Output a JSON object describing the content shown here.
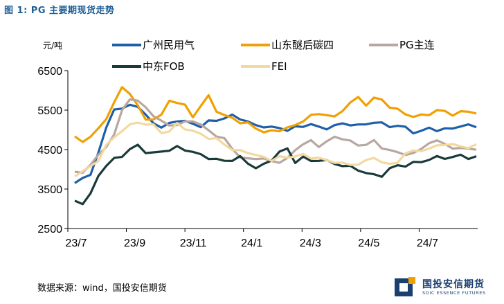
{
  "title": "图 1: PG 主要期现货走势",
  "source": "数据来源：wind，国投安信期货",
  "logo": {
    "cn": "国投安信期货",
    "en": "SDIC ESSENCE FUTURES"
  },
  "chart_data": {
    "type": "line",
    "yunit": "元/吨",
    "ylim": [
      2500,
      6500
    ],
    "yticks": [
      "2500",
      "3500",
      "4500",
      "5500",
      "6500"
    ],
    "xticks": [
      "23/7",
      "23/9",
      "23/11",
      "24/1",
      "24/3",
      "24/5",
      "24/7"
    ],
    "grid": false,
    "legend": "top",
    "x": [
      "23/7",
      "23/7",
      "23/8",
      "23/8",
      "23/8",
      "23/8",
      "23/9",
      "23/9",
      "23/9",
      "23/9",
      "23/10",
      "23/10",
      "23/10",
      "23/10",
      "23/11",
      "23/11",
      "23/11",
      "23/11",
      "23/12",
      "23/12",
      "23/12",
      "23/12",
      "24/1",
      "24/1",
      "24/1",
      "24/1",
      "24/2",
      "24/2",
      "24/2",
      "24/2",
      "24/3",
      "24/3",
      "24/3",
      "24/3",
      "24/4",
      "24/4",
      "24/4",
      "24/4",
      "24/5",
      "24/5",
      "24/5",
      "24/5",
      "24/6",
      "24/6",
      "24/6",
      "24/6",
      "24/7",
      "24/7",
      "24/7",
      "24/7",
      "24/8",
      "24/8"
    ],
    "series": [
      {
        "name": "广州民用气",
        "color": "#1f5fa8",
        "values": [
          3650,
          3750,
          3900,
          4400,
          5050,
          5550,
          5500,
          5650,
          5600,
          5350,
          5200,
          5050,
          5150,
          5250,
          5200,
          5150,
          5100,
          5200,
          5250,
          5300,
          5350,
          5300,
          5200,
          5100,
          5100,
          5050,
          5050,
          5000,
          5050,
          5100,
          5150,
          5050,
          5050,
          5100,
          5150,
          5150,
          5100,
          5150,
          5200,
          5150,
          5100,
          5100,
          5050,
          4950,
          4950,
          5050,
          5000,
          5000,
          5050,
          5100,
          5100,
          5100
        ]
      },
      {
        "name": "山东醚后碳四",
        "color": "#f0a000",
        "values": [
          4800,
          4700,
          4850,
          5000,
          5300,
          5700,
          6050,
          5950,
          5600,
          5250,
          5300,
          5350,
          5750,
          5700,
          5600,
          5350,
          5600,
          5850,
          5500,
          5350,
          5300,
          5200,
          5150,
          5050,
          4950,
          4950,
          5000,
          5050,
          5100,
          5250,
          5350,
          5400,
          5400,
          5300,
          5500,
          5700,
          5800,
          5650,
          5800,
          5750,
          5600,
          5500,
          5400,
          5350,
          5350,
          5400,
          5500,
          5450,
          5400,
          5450,
          5450,
          5450
        ]
      },
      {
        "name": "PG主连",
        "color": "#b8a7a0",
        "values": [
          3900,
          3950,
          4100,
          4350,
          4600,
          4850,
          5500,
          5800,
          5700,
          5600,
          5350,
          5200,
          5150,
          5100,
          5200,
          5250,
          5100,
          5000,
          4850,
          4750,
          4550,
          4300,
          4250,
          4300,
          4250,
          4200,
          4200,
          4250,
          4500,
          4650,
          4700,
          4600,
          4700,
          4800,
          4800,
          4700,
          4600,
          4650,
          4700,
          4550,
          4500,
          4400,
          4400,
          4400,
          4500,
          4700,
          4700,
          4650,
          4550,
          4500,
          4550,
          4500
        ]
      },
      {
        "name": "中东FOB",
        "color": "#1a3a3a",
        "values": [
          3200,
          3150,
          3350,
          3850,
          4100,
          4250,
          4350,
          4500,
          4600,
          4450,
          4400,
          4450,
          4500,
          4550,
          4500,
          4450,
          4350,
          4300,
          4250,
          4200,
          4250,
          4300,
          4150,
          4050,
          4100,
          4250,
          4450,
          4500,
          4200,
          4300,
          4200,
          4250,
          4200,
          4150,
          4100,
          4050,
          4000,
          3900,
          3850,
          3850,
          4000,
          4100,
          4100,
          4150,
          4200,
          4250,
          4300,
          4300,
          4300,
          4350,
          4300,
          4300
        ]
      },
      {
        "name": "FEI",
        "color": "#f2d9a0",
        "values": [
          3850,
          3950,
          4050,
          4250,
          4600,
          4800,
          5000,
          5100,
          5200,
          5150,
          5100,
          4950,
          4950,
          5150,
          5050,
          4950,
          4900,
          4800,
          4750,
          4650,
          4500,
          4450,
          4450,
          4350,
          4300,
          4250,
          4300,
          4300,
          4350,
          4350,
          4300,
          4300,
          4200,
          4200,
          4150,
          4100,
          4150,
          4200,
          4300,
          4200,
          4100,
          4200,
          4400,
          4450,
          4500,
          4500,
          4600,
          4650,
          4600,
          4600,
          4550,
          4600
        ]
      }
    ]
  }
}
